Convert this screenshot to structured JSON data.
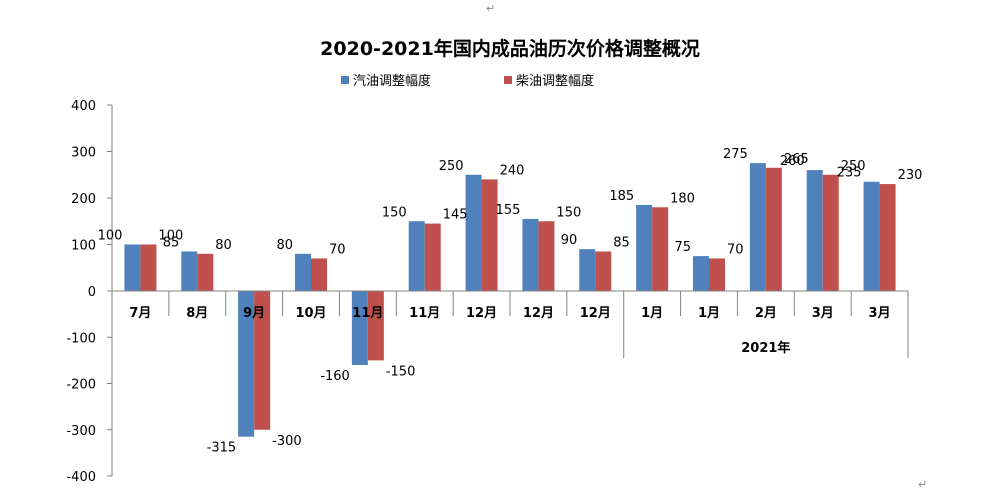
{
  "chart_data": {
    "type": "bar",
    "title": "2020-2021年国内成品油历次价格调整概况",
    "categories": [
      "7月",
      "8月",
      "9月",
      "10月",
      "11月",
      "11月",
      "12月",
      "12月",
      "12月",
      "1月",
      "1月",
      "2月",
      "3月",
      "3月"
    ],
    "group_label": "2021年",
    "series": [
      {
        "name": "汽油调整幅度",
        "color": "#4f81bd",
        "values": [
          100,
          85,
          -315,
          80,
          -160,
          150,
          250,
          155,
          90,
          185,
          75,
          275,
          260,
          235
        ]
      },
      {
        "name": "柴油调整幅度",
        "color": "#c0504d",
        "values": [
          100,
          80,
          -300,
          70,
          -150,
          145,
          240,
          150,
          85,
          180,
          70,
          265,
          250,
          230
        ]
      }
    ],
    "ylim": [
      -400,
      400
    ],
    "yticks": [
      400,
      300,
      200,
      100,
      0,
      -100,
      -200,
      -300,
      -400
    ],
    "legend_position": "top-center",
    "grid": false
  },
  "marks": {
    "return_top": "↵",
    "return_bottom": "↵"
  }
}
